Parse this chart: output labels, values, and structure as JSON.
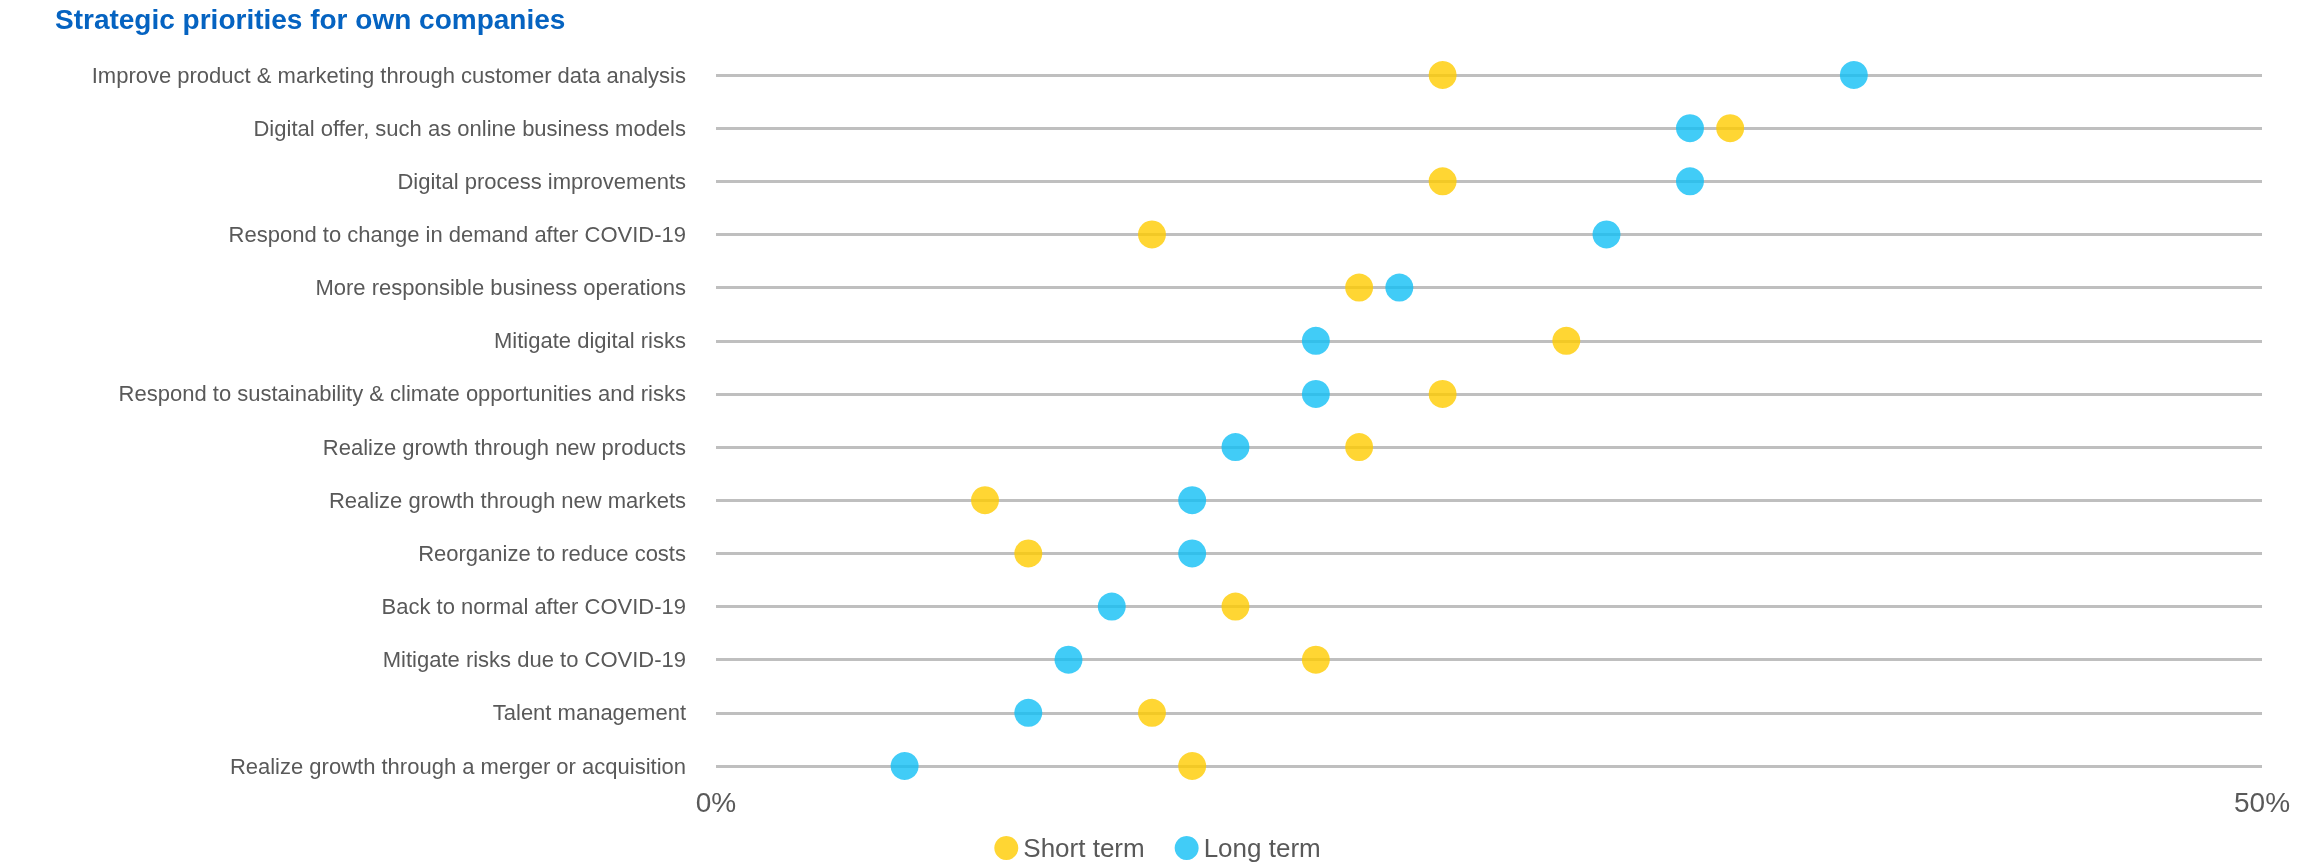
{
  "chart_data": {
    "type": "scatter",
    "title": "Strategic priorities for own companies",
    "categories": [
      "Improve product & marketing through customer data analysis",
      "Digital offer, such as online business models",
      "Digital process improvements",
      "Respond to change in demand after COVID-19",
      "More responsible business operations",
      "Mitigate digital risks",
      "Respond to sustainability & climate opportunities and risks",
      "Realize growth through new products",
      "Realize growth through new markets",
      "Reorganize to reduce costs",
      "Back to normal after COVID-19",
      "Mitigate risks due to COVID-19",
      "Talent management",
      "Realize growth through a merger or acquisition"
    ],
    "orientation": "horizontal",
    "series": [
      {
        "name": "Short term",
        "color": "#ffcc00",
        "values": [
          23.5,
          32.8,
          23.5,
          14.1,
          20.8,
          27.5,
          23.5,
          20.8,
          8.7,
          10.1,
          16.8,
          19.4,
          14.1,
          15.4
        ]
      },
      {
        "name": "Long term",
        "color": "#12bff5",
        "values": [
          36.8,
          31.5,
          31.5,
          28.8,
          22.1,
          19.4,
          19.4,
          16.8,
          15.4,
          15.4,
          12.8,
          11.4,
          10.1,
          6.1
        ]
      }
    ],
    "xlim": [
      0,
      50
    ],
    "xticks": [
      {
        "value": 0,
        "label": "0%"
      },
      {
        "value": 50,
        "label": "50%"
      }
    ],
    "grid": "y",
    "legend": "bottom",
    "marker": "circle"
  }
}
